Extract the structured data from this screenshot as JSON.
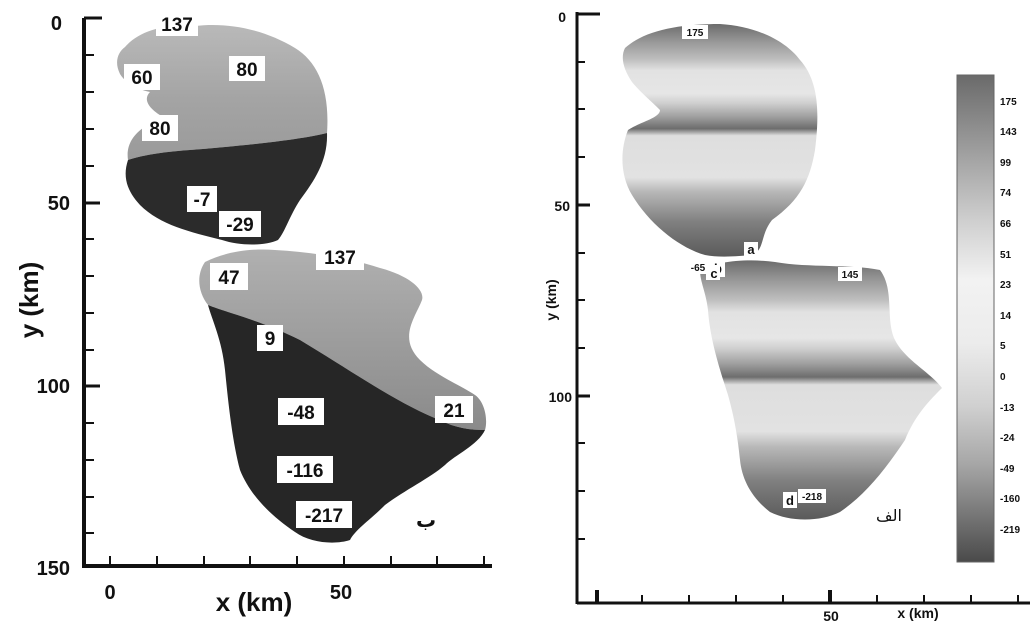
{
  "left_panel": {
    "label": "ب",
    "x_label": "x (km)",
    "y_label": "y (km)",
    "x_ticks": [
      "0",
      "50"
    ],
    "y_ticks": [
      "0",
      "50",
      "100",
      "150"
    ],
    "values": [
      "137",
      "80",
      "60",
      "80",
      "-7",
      "-29",
      "137",
      "47",
      "9",
      "-48",
      "21",
      "-116",
      "-217"
    ],
    "colors": {
      "light": "#a9a9a9",
      "mid": "#8e8e8e",
      "dark": "#2a2a2a"
    }
  },
  "right_panel": {
    "label": "الف",
    "x_label": "x (km)",
    "y_label": "y (km)",
    "x_ticks": [
      "50"
    ],
    "y_ticks": [
      "0",
      "50",
      "100"
    ],
    "values": [
      "175",
      "-65",
      "145",
      "-218"
    ],
    "points": [
      "a",
      "b",
      "c",
      "d"
    ],
    "colorbar": [
      "175",
      "143",
      "99",
      "74",
      "66",
      "51",
      "23",
      "14",
      "5",
      "0",
      "-13",
      "-24",
      "-49",
      "-160",
      "-219"
    ]
  }
}
